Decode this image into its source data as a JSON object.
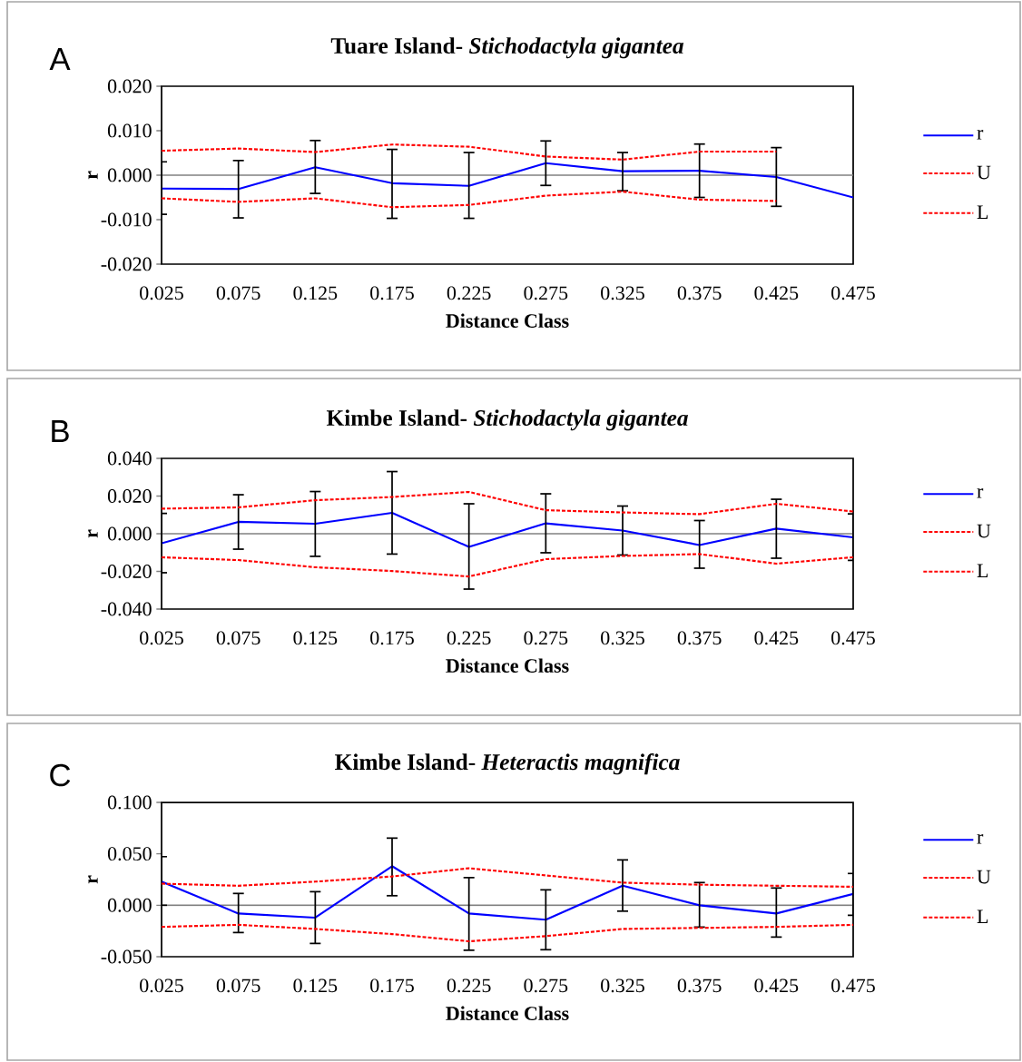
{
  "chart_data": [
    {
      "type": "line",
      "title": "Tuare Island- *Stichodactyla gigantea*",
      "xlabel": "Distance Class",
      "ylabel": "r",
      "annotations": [
        "A"
      ],
      "legend": "right",
      "marker": "none",
      "x": [
        0.025,
        0.075,
        0.125,
        0.175,
        0.225,
        0.275,
        0.325,
        0.375,
        0.425,
        0.475
      ],
      "xlim": [
        0.025,
        0.475
      ],
      "xticks": [
        0.025,
        0.075,
        0.125,
        0.175,
        0.225,
        0.275,
        0.325,
        0.375,
        0.425,
        0.475
      ],
      "ylim": [
        -0.02,
        0.02
      ],
      "yticks": [
        {
          "value": 0.02,
          "label": "0.020"
        },
        {
          "value": 0.01,
          "label": "0.010"
        },
        {
          "value": 0,
          "label": "0.000"
        },
        {
          "value": -0.01,
          "label": "-0.010"
        },
        {
          "value": -0.02,
          "label": "-0.020"
        }
      ],
      "ref_lines": [
        {
          "axis": "y",
          "value": 0,
          "color": "#808080"
        }
      ],
      "series": [
        {
          "name": "r",
          "color": "#0000ff",
          "line_style": "solid",
          "values": [
            -0.003,
            -0.0031,
            0.0018,
            -0.0018,
            -0.0024,
            0.0027,
            0.0009,
            0.001,
            -0.0004,
            -0.005
          ],
          "errors": [
            [
              -0.0088,
              0.003
            ],
            [
              -0.0096,
              0.0033
            ],
            [
              -0.0041,
              0.0078
            ],
            [
              -0.0097,
              0.0058
            ],
            [
              -0.0097,
              0.0051
            ],
            [
              -0.0023,
              0.0077
            ],
            [
              -0.0035,
              0.0051
            ],
            [
              -0.005,
              0.007
            ],
            [
              -0.007,
              0.0062
            ],
            null
          ]
        },
        {
          "name": "U",
          "color": "#ff0000",
          "line_style": "dashed",
          "values": [
            0.0055,
            0.006,
            0.0052,
            0.0069,
            0.0064,
            0.0042,
            0.0035,
            0.0053,
            0.0053,
            null
          ]
        },
        {
          "name": "L",
          "color": "#ff0000",
          "line_style": "dashed",
          "values": [
            -0.0052,
            -0.006,
            -0.0052,
            -0.0072,
            -0.0067,
            -0.0046,
            -0.0037,
            -0.0055,
            -0.0058,
            null
          ]
        }
      ]
    },
    {
      "type": "line",
      "title": "Kimbe Island- *Stichodactyla gigantea*",
      "xlabel": "Distance Class",
      "ylabel": "r",
      "annotations": [
        "B"
      ],
      "legend": "right",
      "marker": "none",
      "x": [
        0.025,
        0.075,
        0.125,
        0.175,
        0.225,
        0.275,
        0.325,
        0.375,
        0.425,
        0.475
      ],
      "xlim": [
        0.025,
        0.475
      ],
      "xticks": [
        0.025,
        0.075,
        0.125,
        0.175,
        0.225,
        0.275,
        0.325,
        0.375,
        0.425,
        0.475
      ],
      "ylim": [
        -0.04,
        0.04
      ],
      "yticks": [
        {
          "value": 0.04,
          "label": "0.040"
        },
        {
          "value": 0.02,
          "label": "0.020"
        },
        {
          "value": 0,
          "label": "0.000"
        },
        {
          "value": -0.02,
          "label": "-0.020"
        },
        {
          "value": -0.04,
          "label": "-0.040"
        }
      ],
      "ref_lines": [
        {
          "axis": "y",
          "value": 0,
          "color": "#808080"
        }
      ],
      "series": [
        {
          "name": "r",
          "color": "#0000ff",
          "line_style": "solid",
          "values": [
            -0.0051,
            0.0063,
            0.0053,
            0.0111,
            -0.007,
            0.0055,
            0.0017,
            -0.006,
            0.0027,
            -0.0019
          ],
          "errors": [
            [
              -0.0207,
              0.0108
            ],
            [
              -0.0082,
              0.0207
            ],
            [
              -0.012,
              0.0224
            ],
            [
              -0.0108,
              0.033
            ],
            [
              -0.0294,
              0.0159
            ],
            [
              -0.0101,
              0.0212
            ],
            [
              -0.0113,
              0.0147
            ],
            [
              -0.0183,
              0.007
            ],
            [
              -0.013,
              0.0183
            ],
            [
              -0.0142,
              0.0106
            ]
          ]
        },
        {
          "name": "U",
          "color": "#ff0000",
          "line_style": "dashed",
          "values": [
            0.0133,
            0.014,
            0.0178,
            0.0195,
            0.0222,
            0.0125,
            0.0113,
            0.0104,
            0.0159,
            0.0118
          ]
        },
        {
          "name": "L",
          "color": "#ff0000",
          "line_style": "dashed",
          "values": [
            -0.0125,
            -0.014,
            -0.0178,
            -0.0198,
            -0.0227,
            -0.0135,
            -0.0118,
            -0.0108,
            -0.0159,
            -0.0125
          ]
        }
      ]
    },
    {
      "type": "line",
      "title": "Kimbe Island- *Heteractis magnifica*",
      "xlabel": "Distance Class",
      "ylabel": "r",
      "annotations": [
        "C"
      ],
      "legend": "right",
      "marker": "none",
      "x": [
        0.025,
        0.075,
        0.125,
        0.175,
        0.225,
        0.275,
        0.325,
        0.375,
        0.425,
        0.475
      ],
      "xlim": [
        0.025,
        0.475
      ],
      "xticks": [
        0.025,
        0.075,
        0.125,
        0.175,
        0.225,
        0.275,
        0.325,
        0.375,
        0.425,
        0.475
      ],
      "ylim": [
        -0.05,
        0.1
      ],
      "yticks": [
        {
          "value": 0.1,
          "label": "0.100"
        },
        {
          "value": 0.05,
          "label": "0.050"
        },
        {
          "value": 0,
          "label": "0.000"
        },
        {
          "value": -0.05,
          "label": "-0.050"
        }
      ],
      "ref_lines": [
        {
          "axis": "y",
          "value": 0,
          "color": "#808080"
        }
      ],
      "series": [
        {
          "name": "r",
          "color": "#0000ff",
          "line_style": "solid",
          "values": [
            0.023,
            -0.008,
            -0.012,
            0.038,
            -0.008,
            -0.014,
            0.019,
            0.0,
            -0.008,
            0.011
          ],
          "errors": [
            [
              0.0,
              0.0472
            ],
            [
              -0.0265,
              0.0115
            ],
            [
              -0.0371,
              0.0132
            ],
            [
              0.0093,
              0.0653
            ],
            [
              -0.0437,
              0.0269
            ],
            [
              -0.0432,
              0.015
            ],
            [
              -0.0057,
              0.0441
            ],
            [
              -0.0212,
              0.0221
            ],
            [
              -0.0309,
              0.0168
            ],
            [
              -0.0097,
              0.0309
            ]
          ]
        },
        {
          "name": "U",
          "color": "#ff0000",
          "line_style": "dashed",
          "values": [
            0.021,
            0.019,
            0.023,
            0.028,
            0.036,
            0.029,
            0.022,
            0.02,
            0.019,
            0.018
          ]
        },
        {
          "name": "L",
          "color": "#ff0000",
          "line_style": "dashed",
          "values": [
            -0.021,
            -0.019,
            -0.023,
            -0.028,
            -0.035,
            -0.03,
            -0.023,
            -0.022,
            -0.021,
            -0.019
          ]
        }
      ]
    }
  ]
}
